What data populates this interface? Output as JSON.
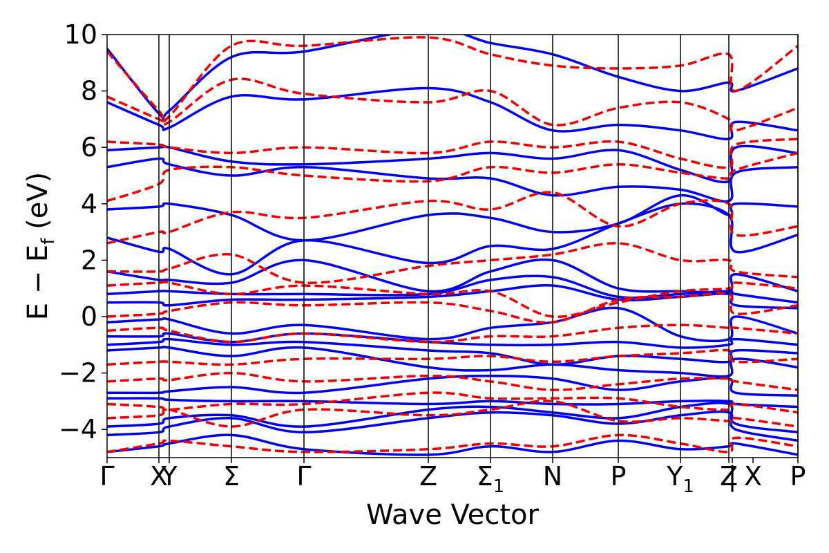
{
  "chart_data": {
    "type": "line",
    "title": "",
    "xlabel": "Wave Vector",
    "ylabel": "E − E",
    "ylabel_sub": "f",
    "ylabel_unit": " (eV)",
    "ylim": [
      -5,
      10
    ],
    "yticks": [
      -4,
      -2,
      0,
      2,
      4,
      6,
      8,
      10
    ],
    "ytick_labels": [
      "−4",
      "−2",
      "0",
      "2",
      "4",
      "6",
      "8",
      "10"
    ],
    "grid": false,
    "legend": "none",
    "colors": {
      "solid": "#0000ee",
      "dashed": "#ee0000"
    },
    "kpath": [
      {
        "x": 0.0,
        "label": "Γ",
        "sub": ""
      },
      {
        "x": 0.75,
        "label": "X",
        "sub": ""
      },
      {
        "x": 0.9,
        "label": "Y",
        "sub": ""
      },
      {
        "x": 1.8,
        "label": "Σ",
        "sub": ""
      },
      {
        "x": 2.85,
        "label": "Γ",
        "sub": ""
      },
      {
        "x": 4.65,
        "label": "Z",
        "sub": ""
      },
      {
        "x": 5.55,
        "label": "Σ",
        "sub": "1"
      },
      {
        "x": 6.45,
        "label": "N",
        "sub": ""
      },
      {
        "x": 7.4,
        "label": "P",
        "sub": ""
      },
      {
        "x": 8.3,
        "label": "Y",
        "sub": "1"
      },
      {
        "x": 9.0,
        "label": "Z",
        "sub": ""
      },
      {
        "x": 9.05,
        "label": "|",
        "sub": ""
      },
      {
        "x": 9.35,
        "label": "X",
        "sub": ""
      },
      {
        "x": 10.0,
        "label": "P",
        "sub": ""
      }
    ],
    "vlines": [
      0.75,
      0.9,
      1.8,
      2.85,
      4.65,
      5.55,
      6.45,
      7.4,
      8.3,
      9.0,
      10.0
    ],
    "xlim": [
      0,
      10
    ],
    "series": [
      {
        "style": "solid",
        "x": [
          0,
          0.75,
          0.9,
          1.8,
          2.85,
          4.65,
          5.55,
          6.45,
          7.4,
          8.3,
          9.0,
          9.1,
          10.0
        ],
        "values": [
          -4.8,
          -4.6,
          -4.5,
          -4.2,
          -4.7,
          -4.9,
          -4.6,
          -4.8,
          -4.4,
          -4.7,
          -4.6,
          -4.5,
          -4.9
        ]
      },
      {
        "style": "solid",
        "x": [
          0,
          0.75,
          0.9,
          1.8,
          2.85,
          4.65,
          5.55,
          6.45,
          7.4,
          8.3,
          9.0,
          9.1,
          10.0
        ],
        "values": [
          -4.2,
          -4.1,
          -3.9,
          -3.6,
          -4.1,
          -3.6,
          -3.4,
          -3.5,
          -3.8,
          -3.5,
          -3.4,
          -4.0,
          -4.4
        ]
      },
      {
        "style": "solid",
        "x": [
          0,
          0.75,
          0.9,
          1.8,
          2.85,
          4.65,
          5.55,
          6.45,
          7.4,
          8.3,
          9.0,
          9.1,
          10.0
        ],
        "values": [
          -3.9,
          -3.8,
          -3.6,
          -3.5,
          -3.9,
          -3.3,
          -3.2,
          -3.4,
          -3.6,
          -3.2,
          -3.1,
          -3.8,
          -4.1
        ]
      },
      {
        "style": "solid",
        "x": [
          0,
          0.75,
          0.9,
          1.8,
          2.85,
          4.65,
          5.55,
          6.45,
          7.4,
          8.3,
          9.0,
          9.1,
          10.0
        ],
        "values": [
          -2.9,
          -2.9,
          -2.95,
          -3.0,
          -3.0,
          -3.1,
          -3.0,
          -3.1,
          -3.1,
          -3.0,
          -3.0,
          -3.1,
          -3.2
        ]
      },
      {
        "style": "solid",
        "x": [
          0,
          0.75,
          0.9,
          1.8,
          2.85,
          4.65,
          5.55,
          6.45,
          7.4,
          8.3,
          9.0,
          9.1,
          10.0
        ],
        "values": [
          -2.7,
          -2.7,
          -2.65,
          -2.5,
          -2.7,
          -2.2,
          -2.1,
          -2.2,
          -2.6,
          -2.3,
          -2.2,
          -2.7,
          -2.8
        ]
      },
      {
        "style": "solid",
        "x": [
          0,
          0.75,
          0.9,
          1.8,
          2.85,
          4.65,
          5.55,
          6.45,
          7.4,
          8.3,
          9.0,
          9.1,
          10.0
        ],
        "values": [
          -1.2,
          -1.1,
          -1.1,
          -1.4,
          -1.1,
          -1.8,
          -1.9,
          -1.7,
          -1.9,
          -2.0,
          -2.1,
          -1.5,
          -1.8
        ]
      },
      {
        "style": "solid",
        "x": [
          0,
          0.75,
          0.9,
          1.8,
          2.85,
          4.65,
          5.55,
          6.45,
          7.4,
          8.3,
          9.0,
          9.1,
          10.0
        ],
        "values": [
          -1.0,
          -0.9,
          -0.8,
          -1.0,
          -0.9,
          -1.2,
          -1.3,
          -1.7,
          -1.4,
          -1.5,
          -1.6,
          -1.2,
          -1.3
        ]
      },
      {
        "style": "solid",
        "x": [
          0,
          0.75,
          0.9,
          1.8,
          2.85,
          4.65,
          5.55,
          6.45,
          7.4,
          8.3,
          9.0,
          9.1,
          10.0
        ],
        "values": [
          -0.7,
          -0.7,
          -0.6,
          -0.9,
          -0.6,
          -0.9,
          -1.0,
          -1.0,
          -0.9,
          -1.1,
          -1.0,
          -0.8,
          -1.0
        ]
      },
      {
        "style": "solid",
        "x": [
          0,
          0.75,
          0.9,
          1.8,
          2.85,
          4.65,
          5.55,
          6.45,
          7.4,
          8.3,
          9.0,
          9.1,
          10.0
        ],
        "values": [
          -0.2,
          -0.1,
          -0.1,
          -0.6,
          -0.3,
          -0.8,
          -0.4,
          -0.2,
          0.3,
          -0.7,
          -0.8,
          0.0,
          -0.6
        ]
      },
      {
        "style": "solid",
        "x": [
          0,
          0.75,
          0.9,
          1.8,
          2.85,
          4.65,
          5.55,
          6.45,
          7.4,
          8.3,
          9.0,
          9.1,
          10.0
        ],
        "values": [
          0.5,
          0.5,
          0.4,
          0.6,
          0.6,
          0.7,
          0.9,
          1.1,
          0.6,
          0.7,
          0.8,
          0.4,
          0.3
        ]
      },
      {
        "style": "solid",
        "x": [
          0,
          0.75,
          0.9,
          1.8,
          2.85,
          4.65,
          5.55,
          6.45,
          7.4,
          8.3,
          9.0,
          9.1,
          10.0
        ],
        "values": [
          0.8,
          0.9,
          0.9,
          0.8,
          0.8,
          0.8,
          1.3,
          1.4,
          0.7,
          0.8,
          0.9,
          0.8,
          0.5
        ]
      },
      {
        "style": "solid",
        "x": [
          0,
          0.75,
          0.9,
          1.8,
          2.85,
          4.65,
          5.55,
          6.45,
          7.4,
          8.3,
          9.0,
          9.1,
          10.0
        ],
        "values": [
          1.6,
          1.3,
          1.3,
          1.2,
          2.0,
          0.9,
          1.6,
          2.0,
          1.0,
          0.9,
          0.9,
          1.5,
          0.9
        ]
      },
      {
        "style": "solid",
        "x": [
          0,
          0.75,
          0.9,
          1.8,
          2.85,
          4.65,
          5.55,
          6.45,
          7.4,
          8.3,
          9.0,
          9.1,
          10.0
        ],
        "values": [
          2.8,
          2.3,
          2.4,
          1.5,
          2.7,
          1.9,
          2.5,
          2.4,
          3.3,
          4.0,
          3.6,
          2.3,
          2.9
        ]
      },
      {
        "style": "solid",
        "x": [
          0,
          0.75,
          0.9,
          1.8,
          2.85,
          4.65,
          5.55,
          6.45,
          7.4,
          8.3,
          9.0,
          9.1,
          10.0
        ],
        "values": [
          3.8,
          3.9,
          4.0,
          3.6,
          2.7,
          3.6,
          3.5,
          3.0,
          3.3,
          4.3,
          3.6,
          4.0,
          3.9
        ]
      },
      {
        "style": "solid",
        "x": [
          0,
          0.75,
          0.9,
          1.8,
          2.85,
          4.65,
          5.55,
          6.45,
          7.4,
          8.3,
          9.0,
          9.1,
          10.0
        ],
        "values": [
          5.3,
          5.6,
          5.4,
          5.0,
          5.3,
          4.9,
          4.9,
          4.3,
          4.6,
          4.5,
          4.1,
          5.1,
          5.3
        ]
      },
      {
        "style": "solid",
        "x": [
          0,
          0.75,
          0.9,
          1.8,
          2.85,
          4.65,
          5.55,
          6.45,
          7.4,
          8.3,
          9.0,
          9.1,
          10.0
        ],
        "values": [
          5.9,
          6.0,
          6.0,
          5.5,
          5.4,
          5.6,
          5.8,
          5.6,
          5.9,
          5.2,
          4.8,
          6.0,
          5.8
        ]
      },
      {
        "style": "solid",
        "x": [
          0,
          0.75,
          0.9,
          1.8,
          2.85,
          4.65,
          5.55,
          6.45,
          7.4,
          8.3,
          9.0,
          9.1,
          10.0
        ],
        "values": [
          7.6,
          6.8,
          6.7,
          7.8,
          7.7,
          8.1,
          7.6,
          6.6,
          6.8,
          6.6,
          6.3,
          6.9,
          6.6
        ]
      },
      {
        "style": "solid",
        "x": [
          0,
          0.75,
          0.9,
          1.8,
          2.85,
          4.65,
          5.55,
          6.45,
          7.4,
          8.3,
          9.0,
          9.1,
          10.0
        ],
        "values": [
          9.5,
          7.2,
          7.3,
          9.2,
          9.4,
          10.2,
          9.7,
          9.3,
          8.5,
          8.0,
          8.3,
          8.0,
          8.8
        ]
      },
      {
        "style": "dashed",
        "x": [
          0,
          0.75,
          0.9,
          1.8,
          2.85,
          4.65,
          5.55,
          6.45,
          7.4,
          8.3,
          9.0,
          9.1,
          10.0
        ],
        "values": [
          -4.8,
          -4.5,
          -4.4,
          -4.6,
          -4.8,
          -4.7,
          -4.5,
          -4.6,
          -4.2,
          -4.5,
          -4.8,
          -4.3,
          -4.6
        ]
      },
      {
        "style": "dashed",
        "x": [
          0,
          0.75,
          0.9,
          1.8,
          2.85,
          4.65,
          5.55,
          6.45,
          7.4,
          8.3,
          9.0,
          9.1,
          10.0
        ],
        "values": [
          -3.6,
          -3.5,
          -3.3,
          -3.9,
          -3.3,
          -3.5,
          -3.3,
          -3.0,
          -3.7,
          -3.6,
          -3.7,
          -3.6,
          -3.9
        ]
      },
      {
        "style": "dashed",
        "x": [
          0,
          0.75,
          0.9,
          1.8,
          2.85,
          4.65,
          5.55,
          6.45,
          7.4,
          8.3,
          9.0,
          9.1,
          10.0
        ],
        "values": [
          -3.1,
          -3.2,
          -3.3,
          -3.1,
          -3.1,
          -2.7,
          -2.9,
          -2.9,
          -2.9,
          -3.2,
          -3.3,
          -3.1,
          -3.4
        ]
      },
      {
        "style": "dashed",
        "x": [
          0,
          0.75,
          0.9,
          1.8,
          2.85,
          4.65,
          5.55,
          6.45,
          7.4,
          8.3,
          9.0,
          9.1,
          10.0
        ],
        "values": [
          -2.3,
          -2.2,
          -2.25,
          -2.0,
          -2.3,
          -2.1,
          -2.3,
          -2.6,
          -2.4,
          -2.2,
          -2.2,
          -2.3,
          -2.6
        ]
      },
      {
        "style": "dashed",
        "x": [
          0,
          0.75,
          0.9,
          1.8,
          2.85,
          4.65,
          5.55,
          6.45,
          7.4,
          8.3,
          9.0,
          9.1,
          10.0
        ],
        "values": [
          -1.7,
          -1.6,
          -1.6,
          -1.7,
          -1.5,
          -1.5,
          -1.4,
          -1.6,
          -1.4,
          -1.3,
          -1.2,
          -1.6,
          -1.5
        ]
      },
      {
        "style": "dashed",
        "x": [
          0,
          0.75,
          0.9,
          1.8,
          2.85,
          4.65,
          5.55,
          6.45,
          7.4,
          8.3,
          9.0,
          9.1,
          10.0
        ],
        "values": [
          -0.5,
          -0.4,
          -0.5,
          -0.9,
          -0.6,
          -0.9,
          -0.7,
          -0.7,
          -0.4,
          -0.3,
          -0.4,
          -0.4,
          -0.6
        ]
      },
      {
        "style": "dashed",
        "x": [
          0,
          0.75,
          0.9,
          1.8,
          2.85,
          4.65,
          5.55,
          6.45,
          7.4,
          8.3,
          9.0,
          9.1,
          10.0
        ],
        "values": [
          0.0,
          0.1,
          0.2,
          0.5,
          0.4,
          0.5,
          0.2,
          -0.2,
          0.6,
          0.7,
          0.8,
          0.1,
          0.4
        ]
      },
      {
        "style": "dashed",
        "x": [
          0,
          0.75,
          0.9,
          1.8,
          2.85,
          4.65,
          5.55,
          6.45,
          7.4,
          8.3,
          9.0,
          9.1,
          10.0
        ],
        "values": [
          1.1,
          1.2,
          1.2,
          0.8,
          1.1,
          0.8,
          0.9,
          0.0,
          0.5,
          0.9,
          1.0,
          1.2,
          1.0
        ]
      },
      {
        "style": "dashed",
        "x": [
          0,
          0.75,
          0.9,
          1.8,
          2.85,
          4.65,
          5.55,
          6.45,
          7.4,
          8.3,
          9.0,
          9.1,
          10.0
        ],
        "values": [
          1.6,
          1.6,
          1.7,
          2.2,
          1.2,
          1.8,
          2.0,
          2.2,
          2.6,
          2.0,
          2.0,
          1.6,
          1.4
        ]
      },
      {
        "style": "dashed",
        "x": [
          0,
          0.75,
          0.9,
          1.8,
          2.85,
          4.65,
          5.55,
          6.45,
          7.4,
          8.3,
          9.0,
          9.1,
          10.0
        ],
        "values": [
          2.6,
          3.0,
          3.0,
          3.7,
          3.5,
          4.1,
          3.8,
          4.4,
          3.2,
          4.0,
          4.0,
          2.9,
          3.2
        ]
      },
      {
        "style": "dashed",
        "x": [
          0,
          0.75,
          0.9,
          1.8,
          2.85,
          4.65,
          5.55,
          6.45,
          7.4,
          8.3,
          9.0,
          9.1,
          10.0
        ],
        "values": [
          4.1,
          4.7,
          5.2,
          5.3,
          5.0,
          4.8,
          5.3,
          5.1,
          5.4,
          5.1,
          4.9,
          5.2,
          5.8
        ]
      },
      {
        "style": "dashed",
        "x": [
          0,
          0.75,
          0.9,
          1.8,
          2.85,
          4.65,
          5.55,
          6.45,
          7.4,
          8.3,
          9.0,
          9.1,
          10.0
        ],
        "values": [
          6.2,
          6.1,
          6.0,
          5.8,
          6.0,
          5.8,
          6.2,
          6.0,
          6.2,
          5.6,
          5.3,
          6.1,
          6.3
        ]
      },
      {
        "style": "dashed",
        "x": [
          0,
          0.75,
          0.9,
          1.8,
          2.85,
          4.65,
          5.55,
          6.45,
          7.4,
          8.3,
          9.0,
          9.1,
          10.0
        ],
        "values": [
          7.8,
          7.0,
          6.9,
          8.4,
          7.9,
          7.6,
          8.0,
          6.8,
          7.4,
          7.6,
          7.0,
          6.6,
          7.4
        ]
      },
      {
        "style": "dashed",
        "x": [
          0,
          0.75,
          0.9,
          1.8,
          2.85,
          4.65,
          5.55,
          6.45,
          7.4,
          8.3,
          9.0,
          9.1,
          10.0
        ],
        "values": [
          9.4,
          7.3,
          7.1,
          9.6,
          9.6,
          9.9,
          9.3,
          8.9,
          8.8,
          8.9,
          9.3,
          8.0,
          9.6
        ]
      }
    ]
  }
}
